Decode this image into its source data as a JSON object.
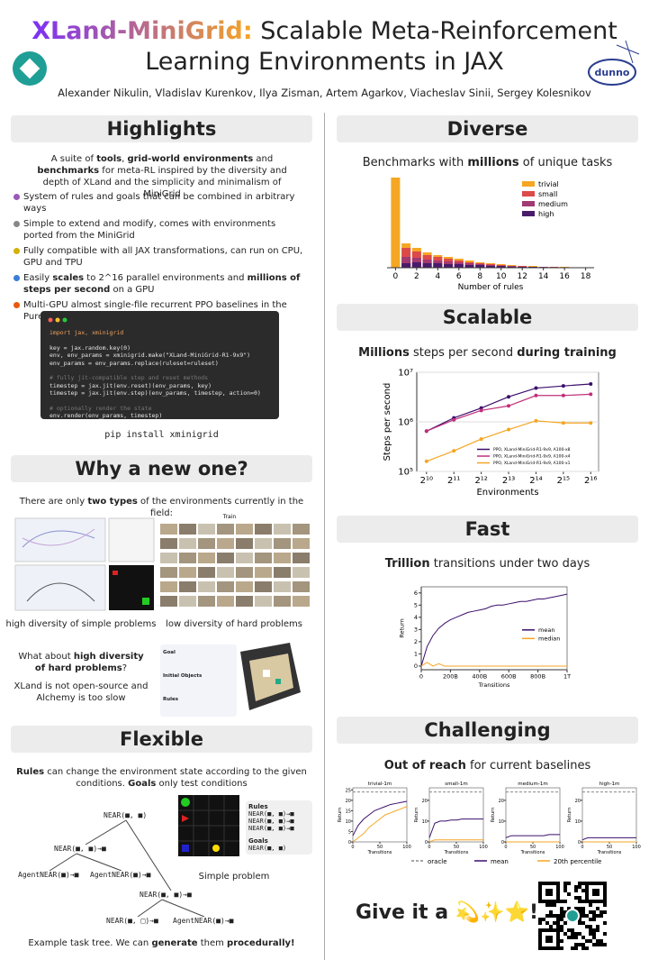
{
  "header": {
    "title_highlight": "XLand-MiniGrid:",
    "title_rest": "Scalable Meta-Reinforcement Learning Environments in JAX",
    "authors": "Alexander Nikulin, Vladislav Kurenkov, Ilya Zisman, Artem Agarkov, Viacheslav Sinii, Sergey Kolesnikov",
    "logo_text": "dunno"
  },
  "highlights": {
    "title": "Highlights",
    "intro": [
      {
        "text": "A suite of "
      },
      {
        "text": "tools",
        "bold": true
      },
      {
        "text": ", "
      },
      {
        "text": "grid-world environments",
        "bold": true
      },
      {
        "text": " and "
      },
      {
        "text": "benchmarks",
        "bold": true
      },
      {
        "text": " for meta-RL inspired by the diversity and depth of XLand and the simplicity and minimalism of MiniGrid"
      }
    ],
    "bullets": [
      [
        {
          "text": "System of rules and goals that can be combined in arbitrary ways"
        }
      ],
      [
        {
          "text": "Simple to extend and modify, comes with environments ported from the MiniGrid"
        }
      ],
      [
        {
          "text": "Fully compatible with all JAX transformations, can run on CPU, GPU and TPU"
        }
      ],
      [
        {
          "text": "Easily "
        },
        {
          "text": "scales",
          "bold": true
        },
        {
          "text": " to 2^16 parallel environments and "
        },
        {
          "text": "millions of steps per second",
          "bold": true
        },
        {
          "text": " on a GPU"
        }
      ],
      [
        {
          "text": "Multi-GPU almost single-file recurrent PPO baselines in the PureJaxRL style"
        }
      ]
    ],
    "code": [
      [
        "import jax, xminigrid"
      ],
      [
        "key = jax.random.key(0)",
        "env, env_params = xminigrid.make(\"XLand-MiniGrid-R1-9x9\")",
        "env_params = env_params.replace(ruleset=ruleset)"
      ],
      [
        "# fully jit-compatible step and reset methods",
        "timestep = jax.jit(env.reset)(env_params, key)",
        "timestep = jax.jit(env.step)(env_params, timestep, action=0)"
      ],
      [
        "# optionally render the state",
        "env.render(env_params, timestep)"
      ]
    ],
    "install": "pip install xminigrid"
  },
  "why": {
    "title": "Why a new one?",
    "intro": [
      {
        "text": "There are only "
      },
      {
        "text": "two types",
        "bold": true
      },
      {
        "text": " of the environments currently in the field:"
      }
    ],
    "train_label": "Train",
    "caption_left": "high diversity of simple problems",
    "caption_right": "low diversity of hard problems",
    "question": [
      {
        "text": "What about "
      },
      {
        "text": "high diversity of hard problems",
        "bold": true
      },
      {
        "text": "?"
      }
    ],
    "note": "XLand is not open-source and Alchemy is too slow",
    "panel_labels": [
      "Goal",
      "Initial Objects",
      "Rules"
    ]
  },
  "flexible": {
    "title": "Flexible",
    "intro": [
      {
        "text": "Rules",
        "bold": true
      },
      {
        "text": " can change the environment state according to the given conditions. "
      },
      {
        "text": "Goals",
        "bold": true
      },
      {
        "text": " only test conditions"
      }
    ],
    "tree_nodes": [
      "NEAR(■, ■)",
      "NEAR(■, ■)→■",
      "AgentNEAR(■)→■",
      "AgentNEAR(■)→■",
      "NEAR(■, ■)→■",
      "NEAR(■, □)→■",
      "AgentNEAR(■)→■"
    ],
    "rules_title": "Rules",
    "rules": [
      "NEAR(■, ■)→■",
      "NEAR(■, ■)→■",
      "NEAR(■, ■)→■"
    ],
    "goals_title": "Goals",
    "goals": [
      "NEAR(■, ■)"
    ],
    "problem_label": "Simple problem",
    "caption": [
      {
        "text": "Example task tree. We can "
      },
      {
        "text": "generate",
        "bold": true
      },
      {
        "text": " them "
      },
      {
        "text": "procedurally!",
        "bold": true
      }
    ]
  },
  "diverse": {
    "title": "Diverse",
    "subtitle": [
      {
        "text": "Benchmarks with "
      },
      {
        "text": "millions",
        "bold": true
      },
      {
        "text": " of unique tasks"
      }
    ],
    "chart_data": {
      "type": "bar",
      "x": [
        0,
        1,
        2,
        3,
        4,
        5,
        6,
        7,
        8,
        9,
        10,
        11,
        12,
        13,
        14,
        15,
        16,
        17,
        18
      ],
      "xlim": [
        -0.8,
        18.8
      ],
      "xticks": [
        0,
        2,
        4,
        6,
        8,
        10,
        12,
        14,
        16,
        18
      ],
      "ylim": [
        0,
        100
      ],
      "xlabel": "Number of rules",
      "legend": "upper right",
      "series": [
        {
          "name": "trivial",
          "color": "#f5a623",
          "values": [
            100,
            27,
            22,
            17,
            14,
            12,
            10,
            8,
            6,
            5,
            4,
            3,
            2,
            2,
            1,
            1,
            1,
            0,
            0
          ]
        },
        {
          "name": "small",
          "color": "#dc4a4a",
          "values": [
            0,
            22,
            18,
            14,
            12,
            10,
            8,
            6,
            5,
            4,
            3,
            2,
            2,
            1,
            1,
            1,
            0,
            0,
            0
          ]
        },
        {
          "name": "medium",
          "color": "#a23a72",
          "values": [
            0,
            12,
            11,
            9,
            8,
            7,
            6,
            5,
            4,
            3,
            2,
            2,
            1,
            1,
            1,
            0,
            0,
            0,
            0
          ]
        },
        {
          "name": "high",
          "color": "#4a1b6b",
          "values": [
            0,
            5,
            6,
            5,
            5,
            4,
            4,
            3,
            3,
            2,
            2,
            1,
            1,
            1,
            0,
            0,
            0,
            0,
            0
          ]
        }
      ]
    }
  },
  "scalable": {
    "title": "Scalable",
    "subtitle": [
      {
        "text": "Millions",
        "bold": true
      },
      {
        "text": " steps per second "
      },
      {
        "text": "during training",
        "bold": true
      }
    ],
    "chart_data": {
      "type": "line",
      "xlog": true,
      "ylog": true,
      "x": [
        1024,
        2048,
        4096,
        8192,
        16384,
        32768,
        65536
      ],
      "xlim": [
        800,
        80000
      ],
      "xticks": [
        {
          "value": 1024,
          "label": "2¹⁰"
        },
        {
          "value": 2048,
          "label": "2¹¹"
        },
        {
          "value": 4096,
          "label": "2¹²"
        },
        {
          "value": 8192,
          "label": "2¹³"
        },
        {
          "value": 16384,
          "label": "2¹⁴"
        },
        {
          "value": 32768,
          "label": "2¹⁵"
        },
        {
          "value": 65536,
          "label": "2¹⁶"
        }
      ],
      "ylim": [
        100000,
        10000000
      ],
      "yticks": [
        {
          "value": 100000,
          "label": "10⁵"
        },
        {
          "value": 1000000,
          "label": "10⁶"
        },
        {
          "value": 10000000,
          "label": "10⁷"
        }
      ],
      "xlabel": "Environments",
      "ylabel": "Steps per second",
      "grid": true,
      "legend": "lower right",
      "series": [
        {
          "name": "PPO, XLand-MiniGrid-R1-9x9, A100-x8",
          "color": "#3b0f6b",
          "values": [
            650000,
            1200000,
            1900000,
            3200000,
            4800000,
            5300000,
            5800000
          ]
        },
        {
          "name": "PPO, XLand-MiniGrid-R1-9x9, A100-x4",
          "color": "#c0307a",
          "values": [
            650000,
            1100000,
            1700000,
            2100000,
            3400000,
            3400000,
            3600000
          ]
        },
        {
          "name": "PPO, XLand-MiniGrid-R1-9x9, A100-x1",
          "color": "#f5a623",
          "values": [
            160000,
            260000,
            450000,
            700000,
            1050000,
            950000,
            950000
          ]
        }
      ]
    }
  },
  "fast": {
    "title": "Fast",
    "subtitle": [
      {
        "text": "Trillion",
        "bold": true
      },
      {
        "text": " transitions under two days"
      }
    ],
    "chart_data": {
      "type": "line",
      "x": [
        0,
        40,
        80,
        120,
        160,
        200,
        240,
        280,
        320,
        360,
        400,
        440,
        480,
        520,
        560,
        600,
        640,
        680,
        720,
        760,
        800,
        840,
        880,
        920,
        960,
        1000
      ],
      "xlim": [
        0,
        1000
      ],
      "xticks": [
        0,
        {
          "value": 200,
          "label": "200B"
        },
        {
          "value": 400,
          "label": "400B"
        },
        {
          "value": 600,
          "label": "600B"
        },
        {
          "value": 800,
          "label": "800B"
        },
        {
          "value": 1000,
          "label": "1T"
        }
      ],
      "ylim": [
        -0.3,
        6.5
      ],
      "yticks": [
        0,
        1,
        2,
        3,
        4,
        5,
        6
      ],
      "xlabel": "Transitions",
      "ylabel": "Return",
      "legend": "center right",
      "series": [
        {
          "name": "mean",
          "color": "#3b0f6b",
          "values": [
            0,
            1.6,
            2.5,
            3.1,
            3.5,
            3.8,
            4.0,
            4.2,
            4.4,
            4.5,
            4.6,
            4.7,
            4.9,
            5.0,
            5.0,
            5.1,
            5.2,
            5.3,
            5.3,
            5.4,
            5.5,
            5.5,
            5.6,
            5.7,
            5.8,
            5.9
          ]
        },
        {
          "name": "median",
          "color": "#f5a623",
          "values": [
            0,
            0.3,
            0,
            0.2,
            0,
            0,
            0,
            0,
            0,
            0,
            0,
            0,
            0,
            0,
            0,
            0,
            0,
            0,
            0,
            0,
            0,
            0,
            0,
            0,
            0,
            0
          ]
        }
      ]
    }
  },
  "challenging": {
    "title": "Challenging",
    "subtitle": [
      {
        "text": "Out of reach",
        "bold": true
      },
      {
        "text": " for current baselines"
      }
    ],
    "chart_data": {
      "type": "line_panels",
      "x": [
        0,
        10,
        20,
        30,
        40,
        50,
        60,
        70,
        80,
        90,
        100
      ],
      "xlim": [
        0,
        100
      ],
      "xticks": [
        0,
        50,
        100
      ],
      "xlabel": "Transitions",
      "ylabel": "Return",
      "ylim": [
        0,
        26
      ],
      "series": [
        {
          "name": "oracle",
          "color": "#888888",
          "dashed": true
        },
        {
          "name": "mean",
          "color": "#3b0f6b"
        },
        {
          "name": "20th percentile",
          "color": "#f5a623"
        }
      ],
      "panels": [
        {
          "title": "trivial-1m",
          "yticks": [
            0,
            5,
            10,
            15,
            20,
            25
          ],
          "values": [
            [
              24,
              24,
              24,
              24,
              24,
              24,
              24,
              24,
              24,
              24,
              24
            ],
            [
              3,
              8,
              11,
              13,
              15,
              16,
              17,
              18,
              18.5,
              19,
              19.5
            ],
            [
              0,
              2,
              4,
              7,
              9,
              11,
              13,
              14,
              15,
              16,
              17
            ]
          ]
        },
        {
          "title": "small-1m",
          "yticks": [
            0,
            10,
            20
          ],
          "values": [
            [
              24,
              24,
              24,
              24,
              24,
              24,
              24,
              24,
              24,
              24,
              24
            ],
            [
              2,
              9,
              10,
              10,
              10.5,
              10.5,
              11,
              11,
              11,
              11,
              11
            ],
            [
              0,
              1,
              1,
              1,
              1,
              1,
              1,
              1,
              1,
              1,
              1
            ]
          ]
        },
        {
          "title": "medium-1m",
          "yticks": [
            0,
            10,
            20
          ],
          "values": [
            [
              24,
              24,
              24,
              24,
              24,
              24,
              24,
              24,
              24,
              24,
              24
            ],
            [
              2,
              3,
              3,
              3,
              3,
              3,
              3,
              3,
              3.5,
              3.5,
              3.5
            ],
            [
              0,
              0,
              0,
              0,
              0,
              0,
              0,
              0,
              0,
              0,
              0
            ]
          ]
        },
        {
          "title": "high-1m",
          "yticks": [
            0,
            10,
            20
          ],
          "values": [
            [
              24,
              24,
              24,
              24,
              24,
              24,
              24,
              24,
              24,
              24,
              24
            ],
            [
              1,
              2,
              2,
              2,
              2,
              2,
              2,
              2,
              2,
              2,
              2
            ],
            [
              0,
              0,
              0,
              0,
              0,
              0,
              0,
              0,
              0,
              0,
              0
            ]
          ]
        }
      ]
    }
  },
  "cta": {
    "text": "Give it a",
    "emoji": "💫✨⭐!"
  }
}
